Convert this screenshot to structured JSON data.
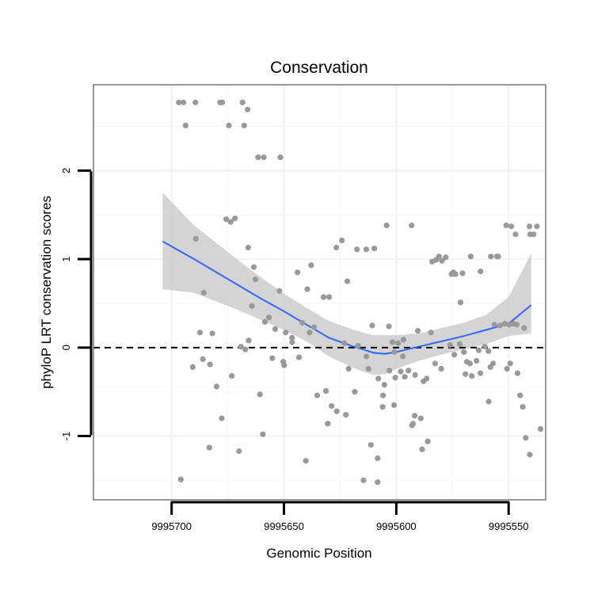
{
  "chart_data": {
    "type": "scatter",
    "title": "Conservation",
    "xlabel": "Genomic Position",
    "ylabel": "phyloP LRT conservation scores",
    "x_reversed": true,
    "xlim": [
      9995734.8,
      9995533.5
    ],
    "ylim": [
      -1.72,
      2.97
    ],
    "x_ticks": [
      9995700,
      9995650,
      9995600,
      9995550
    ],
    "x_tick_labels": [
      "9995700",
      "9995650",
      "9995600",
      "9995550"
    ],
    "y_ticks": [
      -1,
      0,
      1,
      2
    ],
    "y_tick_labels": [
      "-1",
      "0",
      "1",
      "2"
    ],
    "grid": true,
    "reference_line": {
      "y": 0,
      "style": "dashed"
    },
    "series": [
      {
        "type": "scatter",
        "color": "#999999",
        "points": [
          [
            9995696.8,
            2.77
          ],
          [
            9995694.7,
            2.77
          ],
          [
            9995689.4,
            2.77
          ],
          [
            9995678.4,
            2.77
          ],
          [
            9995677.5,
            2.77
          ],
          [
            9995668.4,
            2.77
          ],
          [
            9995693.8,
            2.51
          ],
          [
            9995674.5,
            2.51
          ],
          [
            9995667.7,
            2.51
          ],
          [
            9995666.2,
            2.69
          ],
          [
            9995661.5,
            2.15
          ],
          [
            9995659.0,
            2.15
          ],
          [
            9995651.6,
            2.15
          ],
          [
            9995675.7,
            1.45
          ],
          [
            9995673.7,
            1.42
          ],
          [
            9995671.8,
            1.46
          ],
          [
            9995689.2,
            1.23
          ],
          [
            9995665.9,
            1.13
          ],
          [
            9995685.7,
            0.62
          ],
          [
            9995664.3,
            0.47
          ],
          [
            9995663.4,
            0.91
          ],
          [
            9995662.7,
            0.77
          ],
          [
            9995665.7,
            0.08
          ],
          [
            9995687.4,
            0.17
          ],
          [
            9995681.9,
            0.16
          ],
          [
            9995686.1,
            -0.13
          ],
          [
            9995682.9,
            -0.19
          ],
          [
            9995690.6,
            -0.22
          ],
          [
            9995669.2,
            0.01
          ],
          [
            9995667.2,
            -0.02
          ],
          [
            9995680.0,
            -0.44
          ],
          [
            9995673.2,
            -0.32
          ],
          [
            9995660.7,
            -0.53
          ],
          [
            9995677.7,
            -0.8
          ],
          [
            9995683.2,
            -1.13
          ],
          [
            9995670.0,
            -1.17
          ],
          [
            9995659.4,
            -0.98
          ],
          [
            9995695.9,
            -1.49
          ],
          [
            9995658.5,
            0.29
          ],
          [
            9995656.7,
            0.34
          ],
          [
            9995653.9,
            0.21
          ],
          [
            9995652.0,
            0.64
          ],
          [
            9995649.2,
            0.17
          ],
          [
            9995646.4,
            0.11
          ],
          [
            9995644.0,
            0.85
          ],
          [
            9995641.8,
            0.28
          ],
          [
            9995639.6,
            0.66
          ],
          [
            9995638.6,
            0.17
          ],
          [
            9995637.9,
            0.93
          ],
          [
            9995636.6,
            0.23
          ],
          [
            9995632.4,
            0.57
          ],
          [
            9995629.9,
            0.57
          ],
          [
            9995626.7,
            1.13
          ],
          [
            9995624.2,
            1.21
          ],
          [
            9995621.8,
            0.75
          ],
          [
            9995623.2,
            0.05
          ],
          [
            9995621.2,
            -0.24
          ],
          [
            9995618.5,
            -0.5
          ],
          [
            9995617.5,
            1.11
          ],
          [
            9995613.4,
            1.11
          ],
          [
            9995609.8,
            1.12
          ],
          [
            9995604.3,
            1.38
          ],
          [
            9995593.2,
            1.38
          ],
          [
            9995655.2,
            -0.12
          ],
          [
            9995650.3,
            -0.16
          ],
          [
            9995649.9,
            -0.2
          ],
          [
            9995646.4,
            0.06
          ],
          [
            9995643.3,
            -0.11
          ],
          [
            9995635.2,
            -0.54
          ],
          [
            9995631.3,
            -0.49
          ],
          [
            9995628.8,
            -0.66
          ],
          [
            9995626.5,
            -0.72
          ],
          [
            9995630.5,
            -0.86
          ],
          [
            9995622.4,
            -0.76
          ],
          [
            9995617.0,
            0.02
          ],
          [
            9995613.3,
            -0.1
          ],
          [
            9995612.4,
            -0.24
          ],
          [
            9995610.7,
            0.25
          ],
          [
            9995608.0,
            -0.35
          ],
          [
            9995605.3,
            -0.42
          ],
          [
            9995603.1,
            -0.26
          ],
          [
            9995600.5,
            -0.34
          ],
          [
            9995598.0,
            -0.27
          ],
          [
            9995596.2,
            -0.33
          ],
          [
            9995594.6,
            -0.26
          ],
          [
            9995591.6,
            -0.31
          ],
          [
            9995590.4,
            0.19
          ],
          [
            9995587.9,
            -0.38
          ],
          [
            9995603.3,
            0.24
          ],
          [
            9995605.9,
            -0.54
          ],
          [
            9995601.0,
            -0.65
          ],
          [
            9995606.1,
            -0.67
          ],
          [
            9995591.8,
            -0.77
          ],
          [
            9995592.6,
            -0.86
          ],
          [
            9995589.1,
            -0.8
          ],
          [
            9995593.0,
            -0.88
          ],
          [
            9995611.3,
            -1.1
          ],
          [
            9995608.3,
            -1.25
          ],
          [
            9995614.6,
            -1.5
          ],
          [
            9995608.3,
            -1.52
          ],
          [
            9995640.3,
            -1.28
          ],
          [
            9995581.0,
            1.03
          ],
          [
            9995579.7,
            0.98
          ],
          [
            9995578.0,
            1.02
          ],
          [
            9995575.4,
            0.83
          ],
          [
            9995574.6,
            0.85
          ],
          [
            9995573.7,
            0.83
          ],
          [
            9995570.5,
            0.84
          ],
          [
            9995566.9,
            1.03
          ],
          [
            9995562.5,
            0.86
          ],
          [
            9995557.9,
            1.03
          ],
          [
            9995555.2,
            1.03
          ],
          [
            9995554.6,
            1.03
          ],
          [
            9995551.1,
            1.38
          ],
          [
            9995548.8,
            1.37
          ],
          [
            9995546.9,
            1.28
          ],
          [
            9995540.7,
            1.37
          ],
          [
            9995540.4,
            1.28
          ],
          [
            9995538.9,
            1.28
          ],
          [
            9995537.4,
            1.37
          ],
          [
            9995584.1,
            0.97
          ],
          [
            9995582.3,
            0.99
          ],
          [
            9995576.0,
            0.03
          ],
          [
            9995574.2,
            -0.08
          ],
          [
            9995571.8,
            0.04
          ],
          [
            9995569.9,
            -0.05
          ],
          [
            9995568.6,
            -0.16
          ],
          [
            9995567.2,
            -0.18
          ],
          [
            9995564.3,
            -0.15
          ],
          [
            9995563.3,
            -0.03
          ],
          [
            9995560.6,
            0.01
          ],
          [
            9995559.0,
            -0.04
          ],
          [
            9995556.9,
            -0.18
          ],
          [
            9995556.3,
            0.26
          ],
          [
            9995553.8,
            0.25
          ],
          [
            9995551.7,
            0.27
          ],
          [
            9995549.7,
            0.26
          ],
          [
            9995547.8,
            0.27
          ],
          [
            9995546.4,
            0.26
          ],
          [
            9995543.1,
            0.22
          ],
          [
            9995571.4,
            0.51
          ],
          [
            9995569.2,
            -0.3
          ],
          [
            9995566.4,
            -0.32
          ],
          [
            9995562.6,
            -0.29
          ],
          [
            9995558.1,
            -0.22
          ],
          [
            9995550.7,
            -0.24
          ],
          [
            9995549.3,
            -0.18
          ],
          [
            9995546.0,
            -0.29
          ],
          [
            9995544.9,
            -0.54
          ],
          [
            9995543.7,
            -0.67
          ],
          [
            9995542.4,
            -1.02
          ],
          [
            9995540.6,
            -1.21
          ],
          [
            9995535.8,
            -0.92
          ],
          [
            9995584.6,
            0.17
          ],
          [
            9995586.5,
            -0.35
          ],
          [
            9995558.9,
            -0.61
          ],
          [
            9995580.0,
            -0.24
          ],
          [
            9995582.7,
            -0.18
          ],
          [
            9995586.0,
            -1.06
          ],
          [
            9995588.5,
            -1.15
          ],
          [
            9995596.8,
            0.09
          ],
          [
            9995597.1,
            -0.1
          ],
          [
            9995600.8,
            -0.05
          ],
          [
            9995601.7,
            0.06
          ],
          [
            9995599.2,
            0.05
          ]
        ]
      }
    ],
    "smooth": {
      "line_color": "#3366FF",
      "band_color": "#CCCCCC",
      "x": [
        9995704,
        9995690,
        9995680,
        9995670,
        9995660,
        9995650,
        9995640,
        9995630,
        9995620,
        9995615,
        9995610,
        9995605,
        9995600,
        9995590,
        9995580,
        9995570,
        9995560,
        9995550,
        9995540
      ],
      "y": [
        1.2,
        1.0,
        0.85,
        0.7,
        0.55,
        0.41,
        0.26,
        0.11,
        0.02,
        -0.02,
        -0.06,
        -0.07,
        -0.05,
        0.01,
        0.07,
        0.13,
        0.2,
        0.27,
        0.48
      ],
      "ymin": [
        0.66,
        0.62,
        0.52,
        0.42,
        0.31,
        0.2,
        0.07,
        -0.1,
        -0.22,
        -0.27,
        -0.31,
        -0.3,
        -0.24,
        -0.15,
        -0.08,
        -0.02,
        0.04,
        0.13,
        0.16
      ],
      "ymax": [
        1.75,
        1.38,
        1.18,
        0.98,
        0.79,
        0.61,
        0.45,
        0.3,
        0.21,
        0.17,
        0.14,
        0.14,
        0.14,
        0.16,
        0.22,
        0.28,
        0.37,
        0.57,
        1.06
      ]
    }
  }
}
